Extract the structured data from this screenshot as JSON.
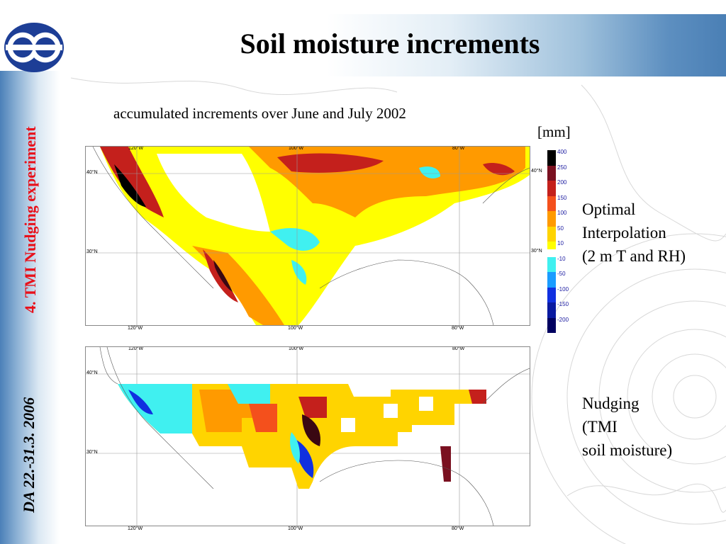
{
  "header": {
    "title": "Soil moisture increments",
    "logo_name": "ecmwf-logo"
  },
  "sidebar": {
    "section_label": "4. TMI Nudging experiment",
    "date_label": "DA 22.-31.3. 2006"
  },
  "figure": {
    "subtitle": "accumulated increments over June and July 2002",
    "unit": "[mm]",
    "colors": {
      "400": "#000000",
      "250": "#7a1020",
      "200": "#c4201c",
      "150": "#f4501c",
      "100": "#ff9a00",
      "50": "#ffd400",
      "10": "#ffff00",
      "-10": "#40f0f0",
      "-50": "#1a9cff",
      "-100": "#1030e0",
      "-150": "#0a1aa0",
      "-200": "#000060"
    },
    "colorbar_labels": [
      "400",
      "250",
      "200",
      "150",
      "100",
      "50",
      "10",
      "-10",
      "-50",
      "-100",
      "-150",
      "-200"
    ],
    "maps": {
      "top": {
        "lon_ticks_top": [
          "120°W",
          "100°W",
          "80°W"
        ],
        "lon_ticks_bottom": [
          "120°W",
          "100°W",
          "80°W"
        ],
        "lat_ticks_left": [
          "40°N",
          "30°N"
        ],
        "lat_ticks_right": [
          "40°N",
          "30°N"
        ],
        "caption": [
          "Optimal",
          "Interpolation",
          "(2 m T and RH)"
        ]
      },
      "bottom": {
        "lon_ticks_top": [
          "120°W",
          "100°W",
          "80°W"
        ],
        "lon_ticks_bottom": [
          "120°W",
          "100°W",
          "80°W"
        ],
        "lat_ticks_left": [
          "40°N",
          "30°N"
        ],
        "caption": [
          "Nudging",
          "(TMI",
          "soil moisture)"
        ]
      }
    }
  }
}
